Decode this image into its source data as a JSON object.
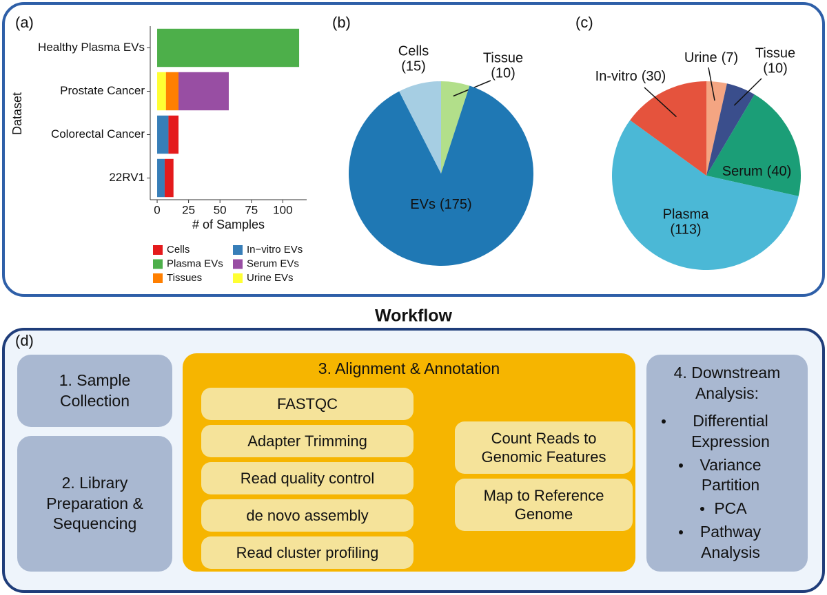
{
  "chart_data": [
    {
      "type": "bar",
      "orientation": "horizontal",
      "stacked": true,
      "panel_label": "(a)",
      "categories": [
        "Healthy Plasma EVs",
        "Prostate Cancer",
        "Colorectal Cancer",
        "22RV1"
      ],
      "series": [
        {
          "name": "Cells",
          "color": "#e41a1c",
          "values": [
            0,
            0,
            8,
            7
          ]
        },
        {
          "name": "Plasma EVs",
          "color": "#4daf4a",
          "values": [
            113,
            0,
            0,
            0
          ]
        },
        {
          "name": "Tissues",
          "color": "#ff7f00",
          "values": [
            0,
            10,
            0,
            0
          ]
        },
        {
          "name": "In−vitro EVs",
          "color": "#377eb8",
          "values": [
            0,
            0,
            9,
            6
          ]
        },
        {
          "name": "Serum EVs",
          "color": "#984ea3",
          "values": [
            0,
            40,
            0,
            0
          ]
        },
        {
          "name": "Urine EVs",
          "color": "#ffff33",
          "values": [
            0,
            7,
            0,
            0
          ]
        }
      ],
      "xlabel": "# of Samples",
      "ylabel": "Dataset",
      "xlim": [
        -5.5,
        119
      ],
      "xticks": [
        0,
        25,
        50,
        75,
        100
      ],
      "legend": "bottom"
    },
    {
      "type": "pie",
      "panel_label": "(b)",
      "categories": [
        "Tissue",
        "EVs",
        "Cells"
      ],
      "values": [
        10,
        175,
        15
      ],
      "value_labels": [
        "(10)",
        "(175)",
        "(15)"
      ],
      "colors": [
        "#b2df8a",
        "#1f78b4",
        "#a6cee3"
      ]
    },
    {
      "type": "pie",
      "panel_label": "(c)",
      "categories": [
        "Urine",
        "Tissue",
        "Serum",
        "Plasma",
        "In-vitro"
      ],
      "values": [
        7,
        10,
        40,
        113,
        30
      ],
      "value_labels": [
        "(7)",
        "(10)",
        "(40)",
        "(113)",
        "(30)"
      ],
      "colors": [
        "#f4a582",
        "#3a4e8c",
        "#1b9e77",
        "#4bb8d6",
        "#e5533d"
      ]
    }
  ],
  "workflow": {
    "title": "Workflow",
    "panel_label": "(d)",
    "steps": [
      {
        "label": "1. Sample Collection"
      },
      {
        "label": "2. Library Preparation & Sequencing"
      },
      {
        "label": "3. Alignment & Annotation",
        "items": [
          "FASTQC",
          "Adapter Trimming",
          "Read quality control",
          "de novo assembly",
          "Read cluster profiling"
        ],
        "outputs": [
          "Count Reads to Genomic Features",
          "Map to Reference Genome"
        ]
      },
      {
        "label": "4. Downstream Analysis:",
        "items": [
          "Differential Expression",
          "Variance Partition",
          "PCA",
          "Pathway Analysis"
        ]
      }
    ]
  }
}
